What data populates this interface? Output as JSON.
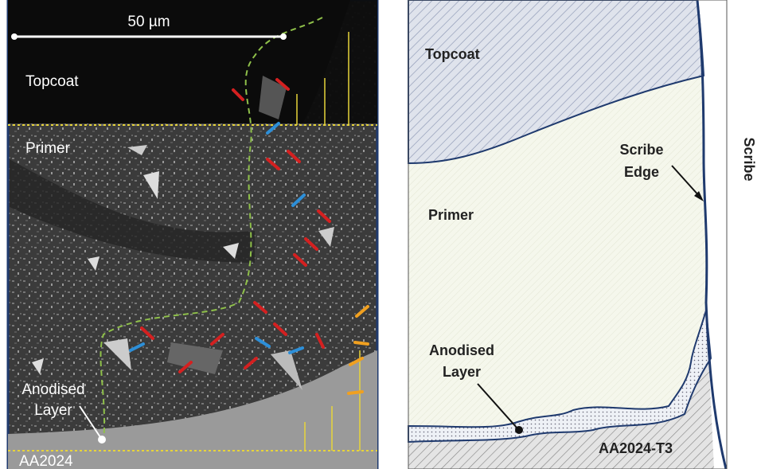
{
  "left_panel": {
    "scale_bar": "50 µm",
    "labels": {
      "topcoat": "Topcoat",
      "primer": "Primer",
      "anodised_layer": [
        "Anodised",
        "Layer"
      ],
      "substrate": "AA2024"
    }
  },
  "right_panel": {
    "labels": {
      "topcoat": "Topcoat",
      "primer": "Primer",
      "scribe_edge": [
        "Scribe",
        "Edge"
      ],
      "scribe": "Scribe",
      "anodised_layer": [
        "Anodised",
        "Layer"
      ],
      "substrate": "AA2024-T3"
    }
  }
}
